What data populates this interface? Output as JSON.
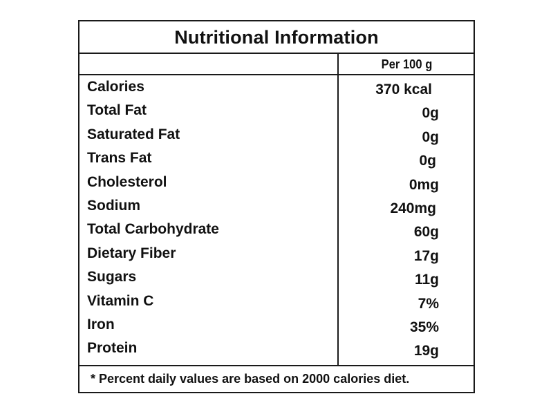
{
  "label": {
    "title": "Nutritional Information",
    "column_header": "Per 100 g",
    "rows": [
      {
        "name": "Calories",
        "value": "370 kcal"
      },
      {
        "name": "Total Fat",
        "value": "0g"
      },
      {
        "name": "Saturated Fat",
        "value": "0g"
      },
      {
        "name": "Trans Fat",
        "value": "0g"
      },
      {
        "name": "Cholesterol",
        "value": "0mg"
      },
      {
        "name": "Sodium",
        "value": "240mg"
      },
      {
        "name": "Total Carbohydrate",
        "value": "60g"
      },
      {
        "name": "Dietary Fiber",
        "value": "17g"
      },
      {
        "name": "Sugars",
        "value": "11g"
      },
      {
        "name": "Vitamin C",
        "value": "7%"
      },
      {
        "name": "Iron",
        "value": "35%"
      },
      {
        "name": "Protein",
        "value": "19g"
      }
    ],
    "footnote": "* Percent daily values are based on 2000 calories diet."
  }
}
